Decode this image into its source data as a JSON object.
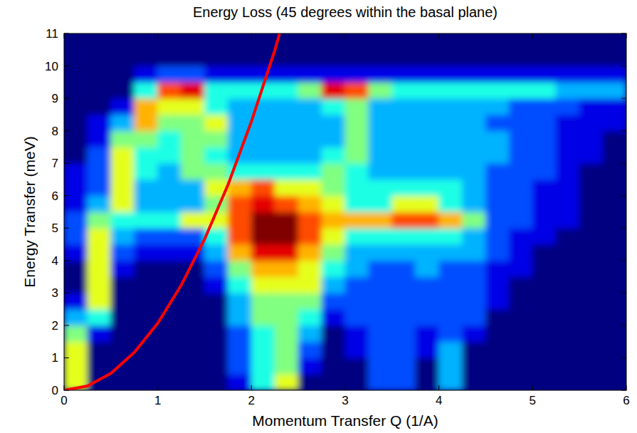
{
  "chart_data": {
    "type": "heatmap",
    "title": "Energy Loss (45 degrees within the basal plane)",
    "x_label": "Momentum Transfer Q (1/A)",
    "y_label": "Energy Transfer (meV)",
    "xlim": [
      0,
      6
    ],
    "ylim": [
      0,
      11
    ],
    "xticks": [
      0,
      1,
      2,
      3,
      4,
      5,
      6
    ],
    "yticks": [
      0,
      1,
      2,
      3,
      4,
      5,
      6,
      7,
      8,
      9,
      10,
      11
    ],
    "grid": false,
    "clim": [
      0,
      10
    ],
    "x": [
      0.125,
      0.375,
      0.625,
      0.875,
      1.125,
      1.375,
      1.625,
      1.875,
      2.125,
      2.375,
      2.625,
      2.875,
      3.125,
      3.375,
      3.625,
      3.875,
      4.125,
      4.375,
      4.625,
      4.875,
      5.125,
      5.375,
      5.625,
      5.875
    ],
    "y": [
      0.25,
      0.75,
      1.25,
      1.75,
      2.25,
      2.75,
      3.25,
      3.75,
      4.25,
      4.75,
      5.25,
      5.75,
      6.25,
      6.75,
      7.25,
      7.75,
      8.25,
      8.75,
      9.25,
      9.75,
      10.25,
      10.75
    ],
    "values": [
      [
        6,
        0,
        0,
        0,
        0,
        0,
        0,
        1,
        4,
        6,
        0,
        0,
        0,
        2,
        2,
        0,
        3,
        0,
        0,
        0,
        0,
        0,
        0,
        0
      ],
      [
        6,
        0,
        0,
        0,
        0,
        0,
        0,
        2,
        4,
        5,
        1,
        0,
        0,
        2,
        2,
        0,
        3,
        0,
        0,
        0,
        0,
        0,
        0,
        0
      ],
      [
        6,
        0,
        0,
        0,
        0,
        0,
        0,
        2,
        4,
        5,
        2,
        0,
        1,
        2,
        2,
        1,
        3,
        0,
        0,
        0,
        0,
        0,
        0,
        0
      ],
      [
        5,
        1,
        0,
        0,
        0,
        0,
        0,
        2,
        4,
        5,
        3,
        0,
        1,
        2,
        2,
        1,
        2,
        1,
        0,
        0,
        0,
        0,
        0,
        0
      ],
      [
        3,
        4,
        0,
        0,
        0,
        0,
        0,
        3,
        5,
        5,
        4,
        1,
        2,
        2,
        2,
        2,
        2,
        2,
        0,
        0,
        0,
        0,
        0,
        0
      ],
      [
        1,
        6,
        0,
        0,
        0,
        0,
        0,
        3,
        5,
        5,
        5,
        2,
        2,
        2,
        2,
        2,
        2,
        2,
        1,
        0,
        0,
        0,
        0,
        0
      ],
      [
        0,
        6,
        0,
        0,
        0,
        0,
        1,
        4,
        6,
        6,
        6,
        3,
        2,
        2,
        2,
        2,
        2,
        2,
        1,
        0,
        0,
        0,
        0,
        0
      ],
      [
        0,
        6,
        1,
        0,
        0,
        0,
        2,
        5,
        7,
        7,
        6,
        4,
        3,
        2,
        2,
        3,
        2,
        2,
        1,
        1,
        0,
        0,
        0,
        0
      ],
      [
        1,
        6,
        2,
        1,
        1,
        1,
        3,
        7,
        9,
        9,
        7,
        5,
        3,
        3,
        3,
        3,
        3,
        3,
        2,
        1,
        0,
        0,
        0,
        0
      ],
      [
        2,
        6,
        3,
        2,
        2,
        2,
        4,
        8,
        10,
        10,
        8,
        6,
        4,
        4,
        4,
        4,
        4,
        3,
        2,
        1,
        1,
        0,
        0,
        0
      ],
      [
        2,
        5,
        4,
        4,
        4,
        6,
        6,
        8,
        10,
        10,
        8,
        7,
        7,
        7,
        8,
        8,
        7,
        5,
        2,
        2,
        1,
        1,
        0,
        0
      ],
      [
        1,
        3,
        6,
        3,
        3,
        3,
        5,
        8,
        9,
        8,
        7,
        6,
        4,
        4,
        6,
        6,
        4,
        3,
        2,
        2,
        1,
        1,
        0,
        0
      ],
      [
        1,
        2,
        6,
        3,
        3,
        3,
        6,
        7,
        8,
        6,
        6,
        5,
        4,
        4,
        4,
        4,
        4,
        3,
        2,
        2,
        1,
        1,
        0,
        0
      ],
      [
        1,
        2,
        6,
        4,
        3,
        5,
        5,
        4,
        4,
        4,
        4,
        5,
        4,
        3,
        3,
        3,
        3,
        3,
        2,
        2,
        2,
        1,
        0,
        0
      ],
      [
        0,
        2,
        6,
        4,
        4,
        5,
        4,
        3,
        3,
        3,
        3,
        4,
        5,
        3,
        3,
        3,
        3,
        3,
        3,
        2,
        2,
        1,
        1,
        0
      ],
      [
        0,
        1,
        5,
        5,
        4,
        5,
        5,
        3,
        3,
        3,
        3,
        3,
        5,
        3,
        3,
        3,
        3,
        3,
        3,
        2,
        2,
        1,
        1,
        0
      ],
      [
        0,
        1,
        3,
        7,
        5,
        5,
        6,
        3,
        3,
        3,
        3,
        3,
        5,
        3,
        3,
        3,
        3,
        3,
        2,
        2,
        2,
        1,
        1,
        1
      ],
      [
        0,
        0,
        1,
        7,
        6,
        6,
        4,
        3,
        3,
        3,
        3,
        4,
        5,
        3,
        3,
        3,
        3,
        3,
        3,
        2,
        2,
        2,
        1,
        1
      ],
      [
        0,
        0,
        0,
        4,
        8,
        9,
        4,
        4,
        4,
        4,
        5,
        9,
        8,
        5,
        4,
        4,
        4,
        4,
        4,
        4,
        4,
        3,
        3,
        3
      ],
      [
        0,
        0,
        0,
        1,
        2,
        2,
        1,
        1,
        1,
        1,
        1,
        1,
        1,
        1,
        1,
        1,
        1,
        1,
        1,
        1,
        1,
        1,
        1,
        1
      ],
      [
        0,
        0,
        0,
        0,
        0,
        0,
        0,
        0,
        0,
        0,
        0,
        0,
        0,
        0,
        0,
        0,
        0,
        0,
        0,
        0,
        0,
        0,
        0,
        0
      ],
      [
        0,
        0,
        0,
        0,
        0,
        0,
        0,
        0,
        0,
        0,
        0,
        0,
        0,
        0,
        0,
        0,
        0,
        0,
        0,
        0,
        0,
        0,
        0,
        0
      ]
    ],
    "series": [
      {
        "type": "line",
        "color": "#ff0000",
        "line_style": "solid",
        "x": [
          0,
          0.25,
          0.5,
          0.75,
          1,
          1.25,
          1.5,
          1.75,
          2,
          2.25,
          2.3
        ],
        "values": [
          0,
          0.13,
          0.52,
          1.17,
          2.07,
          3.24,
          4.66,
          6.34,
          8.29,
          10.49,
          11
        ]
      }
    ]
  }
}
